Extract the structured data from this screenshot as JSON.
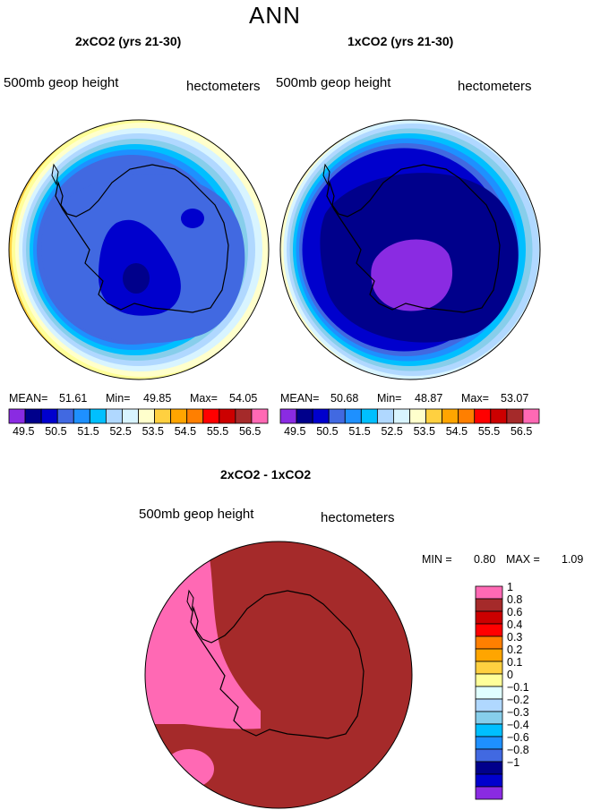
{
  "figure": {
    "title": "ANN"
  },
  "panels": [
    {
      "title": "2xCO2 (yrs 21-30)",
      "field_label": "500mb geop height",
      "units": "hectometers",
      "mean_label": "MEAN=",
      "mean_value": "51.61",
      "min_label": "Min=",
      "min_value": "49.85",
      "max_label": "Max=",
      "max_value": "54.05",
      "ring_colors": [
        "#ffa500",
        "#ffd040",
        "#ffff99",
        "#ffffcc",
        "#d8f4ff",
        "#b0d8ff",
        "#87ceeb",
        "#00bfff",
        "#1e90ff",
        "#4169e1"
      ],
      "interior_color": "#4169e1",
      "core_color": "#0000cd",
      "deep_color": "#00008b"
    },
    {
      "title": "1xCO2 (yrs 21-30)",
      "field_label": "500mb geop height",
      "units": "hectometers",
      "mean_label": "MEAN=",
      "mean_value": "50.68",
      "min_label": "Min=",
      "min_value": "48.87",
      "max_label": "Max=",
      "max_value": "53.07",
      "ring_colors": [
        "#ffffcc",
        "#d8f4ff",
        "#b0d8ff",
        "#87ceeb",
        "#00bfff",
        "#1e90ff",
        "#4169e1",
        "#0000cd"
      ],
      "interior_color": "#00008b",
      "core_color": "#8a2be2"
    }
  ],
  "colorbar_top": {
    "colors": [
      "#8a2be2",
      "#00008b",
      "#0000cd",
      "#4169e1",
      "#1e90ff",
      "#00bfff",
      "#b0d8ff",
      "#d8f4ff",
      "#ffffcc",
      "#ffd040",
      "#ffa500",
      "#ff7f00",
      "#ff0000",
      "#cc0000",
      "#a52a2a",
      "#ff69b4"
    ],
    "tick_labels": [
      "49.5",
      "50.5",
      "51.5",
      "52.5",
      "53.5",
      "54.5",
      "55.5",
      "56.5"
    ]
  },
  "difference": {
    "title": "2xCO2 - 1xCO2",
    "field_label": "500mb geop height",
    "units": "hectometers",
    "min_label": "MIN =",
    "min_value": "0.80",
    "max_label": "MAX =",
    "max_value": "1.09",
    "main_color": "#a52a2a",
    "high_color": "#ff69b4"
  },
  "colorbar_diff": {
    "colors": [
      "#ff69b4",
      "#a52a2a",
      "#cc0000",
      "#ff0000",
      "#ff7f00",
      "#ffa500",
      "#ffd040",
      "#ffff99",
      "#e0ffff",
      "#b0d8ff",
      "#87ceeb",
      "#00bfff",
      "#1e90ff",
      "#4169e1",
      "#00008b",
      "#0000cd",
      "#8a2be2"
    ],
    "tick_labels": [
      "1",
      "0.8",
      "0.6",
      "0.4",
      "0.3",
      "0.2",
      "0.1",
      "0",
      "−0.1",
      "−0.2",
      "−0.3",
      "−0.4",
      "−0.6",
      "−0.8",
      "−1"
    ]
  }
}
